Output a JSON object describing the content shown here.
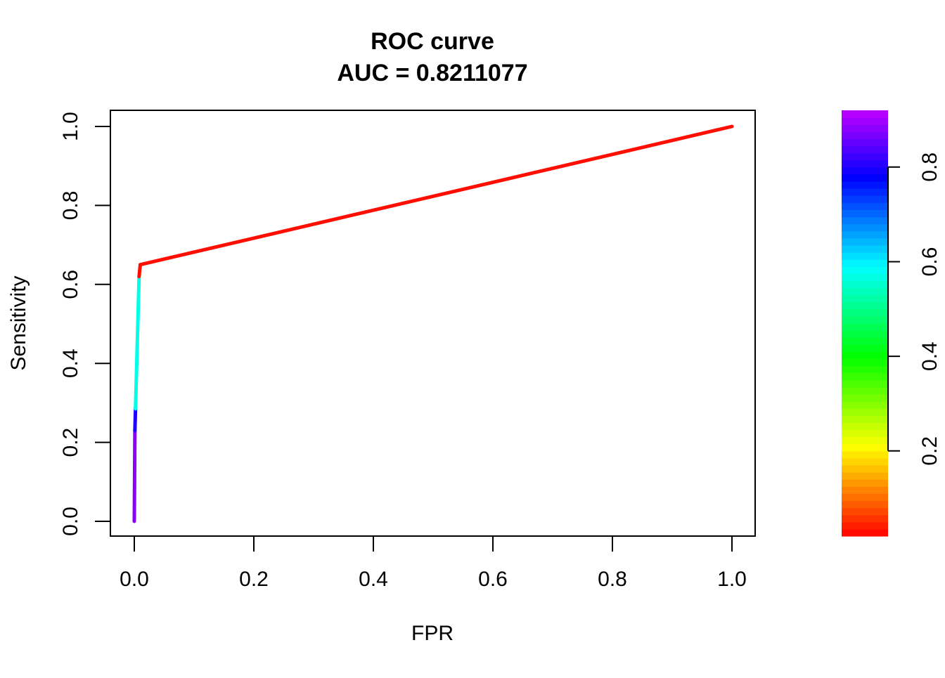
{
  "chart_data": {
    "type": "line",
    "title": "ROC curve",
    "subtitle": "AUC = 0.8211077",
    "xlabel": "FPR",
    "ylabel": "Sensitivity",
    "xlim": [
      0.0,
      1.0
    ],
    "ylim": [
      0.0,
      1.0
    ],
    "x_ticks": [
      0.0,
      0.2,
      0.4,
      0.6,
      0.8,
      1.0
    ],
    "x_tick_labels": [
      "0.0",
      "0.2",
      "0.4",
      "0.6",
      "0.8",
      "1.0"
    ],
    "y_ticks": [
      0.0,
      0.2,
      0.4,
      0.6,
      0.8,
      1.0
    ],
    "y_tick_labels": [
      "0.0",
      "0.2",
      "0.4",
      "0.6",
      "0.8",
      "1.0"
    ],
    "grid": false,
    "series": [
      {
        "name": "ROC",
        "points": [
          {
            "x": 0.0,
            "y": 0.0,
            "cutoff": 0.92
          },
          {
            "x": 0.001,
            "y": 0.23,
            "cutoff": 0.88
          },
          {
            "x": 0.002,
            "y": 0.285,
            "cutoff": 0.8
          },
          {
            "x": 0.008,
            "y": 0.62,
            "cutoff": 0.57
          },
          {
            "x": 0.01,
            "y": 0.65,
            "cutoff": 0.03
          },
          {
            "x": 1.0,
            "y": 1.0,
            "cutoff": 0.03
          }
        ]
      }
    ],
    "colorbar": {
      "range": [
        0.02,
        0.92
      ],
      "ticks": [
        0.2,
        0.4,
        0.6,
        0.8
      ],
      "tick_labels": [
        "0.2",
        "0.4",
        "0.6",
        "0.8"
      ],
      "palette": "rainbow",
      "start_color": "#ff0000",
      "end_color": "#bf00ff"
    }
  }
}
